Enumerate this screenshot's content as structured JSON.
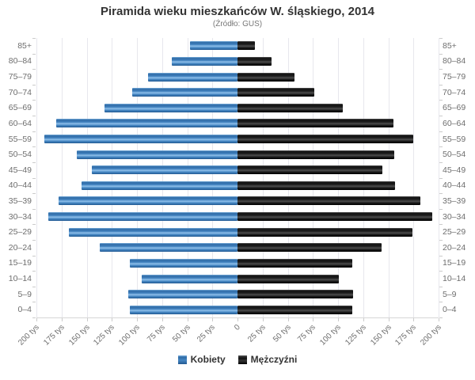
{
  "title": "Piramida wieku mieszkańców W. śląskiego, 2014",
  "subtitle": "(Źródło: GUS)",
  "legend": {
    "female_label": "Kobiety",
    "male_label": "Mężczyźni"
  },
  "colors": {
    "female_bar": "#3f7cba",
    "male_bar": "#1a1a1a",
    "grid": "#e7e7ed",
    "axis_tick": "#cbcbcb",
    "label_text": "#6e6e6e",
    "title_text": "#333333"
  },
  "chart_data": {
    "type": "bar",
    "subtype": "population-pyramid",
    "title": "Piramida wieku mieszkańców W. śląskiego, 2014",
    "subtitle": "(Źródło: GUS)",
    "unit": "tys",
    "grid": "vertical-only",
    "legend_position": "bottom-center",
    "categories_top_to_bottom": [
      "85+",
      "80–84",
      "75–79",
      "70–74",
      "65–69",
      "60–64",
      "55–59",
      "50–54",
      "45–49",
      "40–44",
      "35–39",
      "30–34",
      "25–29",
      "20–24",
      "15–19",
      "10–14",
      "5–9",
      "0–4"
    ],
    "series": [
      {
        "name": "Kobiety",
        "side": "left",
        "values_tys": [
          47,
          65,
          89,
          105,
          132,
          180,
          192,
          160,
          145,
          155,
          178,
          188,
          168,
          137,
          107,
          95,
          109,
          107
        ]
      },
      {
        "name": "Mężczyźni",
        "side": "right",
        "values_tys": [
          17,
          34,
          57,
          76,
          105,
          155,
          175,
          156,
          144,
          157,
          182,
          194,
          174,
          143,
          114,
          101,
          115,
          114
        ]
      }
    ],
    "x_axis": {
      "max_each_side_tys": 200,
      "tick_step_tys": 25,
      "tick_labels": [
        "200 tys",
        "175 tys",
        "150 tys",
        "125 tys",
        "100 tys",
        "75 tys",
        "50 tys",
        "25 tys",
        "0",
        "25 tys",
        "50 tys",
        "75 tys",
        "100 tys",
        "125 tys",
        "150 tys",
        "175 tys",
        "200 tys"
      ]
    }
  }
}
